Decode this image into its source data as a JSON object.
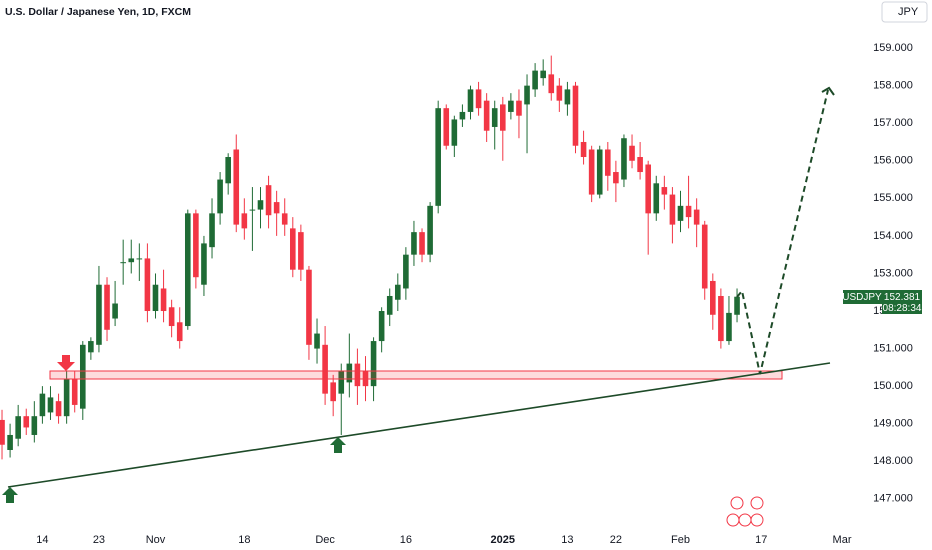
{
  "chart_data": {
    "type": "candlestick",
    "title": "U.S. Dollar / Japanese Yen, 1D, FXCM",
    "currency": "JPY",
    "symbol": "USDJPY",
    "countdown": "08:28:34",
    "up_color": "#1f6b35",
    "down_color": "#f23645",
    "xlim": [
      -0.25,
      103.5
    ],
    "ylim": [
      146.17,
      160.28
    ],
    "xticks": [
      {
        "value": 5,
        "label": "14"
      },
      {
        "value": 12,
        "label": "23"
      },
      {
        "value": 19,
        "label": "Nov"
      },
      {
        "value": 30,
        "label": "18"
      },
      {
        "value": 40,
        "label": "Dec"
      },
      {
        "value": 50,
        "label": "16"
      },
      {
        "value": 62,
        "label": "2025"
      },
      {
        "value": 70,
        "label": "13"
      },
      {
        "value": 76,
        "label": "22"
      },
      {
        "value": 84,
        "label": "Feb"
      },
      {
        "value": 94,
        "label": "17"
      },
      {
        "value": 104,
        "label": "Mar"
      }
    ],
    "yticks": [
      {
        "value": 147,
        "label": "147.000"
      },
      {
        "value": 148,
        "label": "148.000"
      },
      {
        "value": 149,
        "label": "149.000"
      },
      {
        "value": 150,
        "label": "150.000"
      },
      {
        "value": 151,
        "label": "151.000"
      },
      {
        "value": 152,
        "label": "152.000"
      },
      {
        "value": 153,
        "label": "153.000"
      },
      {
        "value": 154,
        "label": "154.000"
      },
      {
        "value": 155,
        "label": "155.000"
      },
      {
        "value": 156,
        "label": "156.000"
      },
      {
        "value": 157,
        "label": "157.000"
      },
      {
        "value": 158,
        "label": "158.000"
      },
      {
        "value": 159,
        "label": "159.000"
      }
    ],
    "open": [
      149.1,
      148.3,
      148.6,
      149.2,
      148.7,
      149.2,
      149.3,
      149.6,
      149.2,
      150.2,
      149.4,
      150.9,
      151.1,
      152.7,
      151.8,
      153.3,
      153.3,
      153.4,
      153.4,
      152.0,
      152.6,
      152.1,
      151.7,
      151.6,
      154.6,
      152.7,
      153.7,
      154.6,
      155.4,
      156.3,
      154.6,
      154.7,
      154.7,
      155.35,
      154.9,
      154.6,
      154.2,
      154.1,
      153.1,
      151.0,
      151.1,
      150.1,
      149.8,
      150.1,
      150.6,
      150.4,
      150.0,
      151.2,
      151.9,
      152.3,
      152.6,
      153.5,
      154.1,
      153.5,
      154.8,
      157.4,
      156.4,
      157.1,
      157.3,
      157.9,
      157.6,
      156.9,
      157.5,
      157.3,
      157.6,
      157.5,
      157.9,
      158.2,
      158.3,
      158.0,
      157.5,
      158.0,
      156.5,
      156.3,
      155.1,
      156.3,
      155.7,
      155.5,
      156.4,
      156.1,
      155.9,
      154.6,
      155.3,
      155.1,
      154.4,
      154.8,
      154.7,
      154.3,
      152.8,
      152.4,
      151.2,
      151.9
    ],
    "high": [
      149.37,
      149.0,
      149.5,
      149.4,
      149.6,
      150.0,
      150.0,
      149.8,
      150.4,
      150.4,
      151.2,
      151.3,
      153.2,
      152.9,
      152.8,
      153.9,
      153.9,
      153.8,
      153.8,
      153.0,
      153.1,
      152.3,
      152.1,
      154.7,
      154.7,
      154.0,
      155.0,
      155.7,
      156.2,
      156.7,
      155.0,
      155.3,
      155.3,
      155.6,
      155.2,
      155.0,
      154.5,
      154.3,
      153.2,
      151.8,
      151.6,
      150.3,
      150.6,
      151.4,
      151.0,
      150.8,
      151.3,
      152.1,
      152.6,
      153.0,
      153.7,
      154.4,
      154.2,
      154.9,
      157.6,
      157.5,
      157.2,
      157.5,
      158.0,
      158.1,
      157.8,
      157.6,
      157.7,
      157.8,
      157.9,
      158.3,
      158.6,
      158.7,
      158.8,
      158.2,
      158.1,
      158.1,
      156.8,
      156.4,
      156.4,
      156.5,
      156.0,
      156.7,
      156.7,
      156.5,
      156.0,
      155.6,
      155.6,
      155.3,
      155.2,
      155.6,
      155.0,
      154.4,
      153.0,
      152.6,
      152.4,
      152.6
    ],
    "low": [
      148.05,
      148.1,
      148.4,
      148.7,
      148.5,
      149.0,
      149.1,
      149.0,
      149.0,
      149.3,
      149.1,
      150.7,
      150.9,
      151.2,
      151.6,
      152.7,
      153.0,
      152.8,
      151.7,
      151.8,
      151.7,
      151.3,
      151.0,
      151.5,
      152.6,
      152.4,
      153.4,
      154.3,
      155.1,
      154.1,
      153.9,
      153.6,
      154.2,
      154.2,
      154.0,
      154.0,
      152.9,
      152.8,
      150.7,
      150.6,
      149.5,
      149.2,
      148.7,
      149.7,
      149.5,
      149.6,
      149.6,
      150.9,
      151.6,
      152.0,
      152.3,
      153.2,
      153.3,
      153.3,
      154.6,
      156.3,
      156.1,
      156.9,
      157.1,
      157.2,
      156.5,
      156.3,
      156.0,
      157.1,
      156.6,
      156.2,
      157.7,
      158.0,
      157.6,
      157.3,
      157.2,
      156.2,
      155.9,
      154.9,
      155.0,
      155.2,
      154.9,
      155.3,
      155.8,
      155.5,
      153.5,
      154.4,
      154.7,
      153.8,
      154.1,
      154.2,
      153.7,
      152.3,
      151.5,
      151.0,
      151.1,
      151.7
    ],
    "close": [
      148.44,
      148.7,
      149.2,
      148.9,
      149.2,
      149.8,
      149.7,
      149.2,
      150.2,
      149.5,
      151.1,
      151.2,
      152.7,
      151.5,
      152.2,
      153.3,
      153.4,
      153.4,
      152.0,
      152.7,
      152.0,
      151.6,
      151.2,
      154.6,
      152.9,
      153.8,
      154.6,
      155.5,
      156.1,
      154.3,
      154.2,
      154.7,
      154.95,
      154.55,
      154.6,
      154.3,
      153.1,
      153.1,
      151.1,
      151.4,
      149.8,
      149.6,
      150.4,
      150.6,
      150.0,
      150.0,
      151.2,
      152.0,
      152.4,
      152.7,
      153.5,
      154.1,
      153.5,
      154.8,
      157.4,
      156.4,
      157.1,
      157.3,
      157.9,
      157.4,
      156.8,
      157.4,
      156.8,
      157.6,
      157.2,
      158.0,
      158.4,
      158.4,
      157.8,
      157.6,
      157.9,
      156.4,
      156.1,
      155.1,
      156.3,
      155.6,
      155.4,
      156.6,
      156.0,
      155.7,
      154.6,
      155.4,
      155.1,
      154.3,
      154.8,
      154.5,
      154.3,
      152.6,
      151.9,
      151.2,
      151.95,
      152.381
    ]
  }
}
